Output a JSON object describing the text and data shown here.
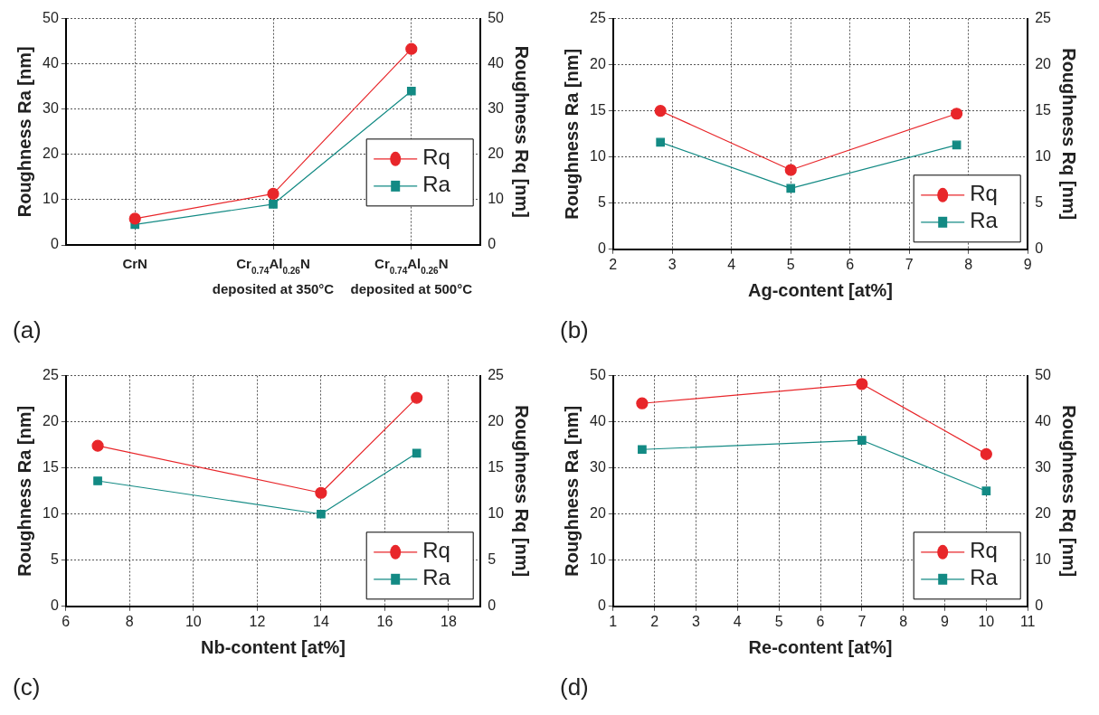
{
  "chart_data": [
    {
      "type": "line",
      "categories": [
        "CrN",
        "Cr$_{0.74}$Al$_{0.26}$N\ndeposited at 350°C",
        "Cr$_{0.74}$Al$_{0.26}$N\ndeposited at 500°C"
      ],
      "ylabel": "Roughness Ra [nm]",
      "y2label": "Roughness Rq [nm]",
      "ylim": [
        0,
        50
      ],
      "yticks": [
        0,
        10,
        20,
        30,
        40,
        50
      ],
      "y2lim": [
        0,
        50
      ],
      "y2ticks": [
        0,
        10,
        20,
        30,
        40,
        50
      ],
      "grid": true,
      "legend": "right",
      "annotations": [
        "(a)"
      ],
      "series": [
        {
          "name": "Rq",
          "color": "#e8262a",
          "marker": "circle",
          "values": [
            5.8,
            11.3,
            43.3
          ]
        },
        {
          "name": "Ra",
          "color": "#138a84",
          "marker": "square",
          "values": [
            4.5,
            9,
            34
          ]
        }
      ]
    },
    {
      "type": "line",
      "x": [
        2.8,
        5,
        7.8
      ],
      "xlabel": "Ag-content [at%]",
      "ylabel": "Roughness Ra [nm]",
      "y2label": "Roughness Rq [nm]",
      "xlim": [
        2,
        9
      ],
      "xticks": [
        2,
        3,
        4,
        5,
        6,
        7,
        8,
        9
      ],
      "ylim": [
        0,
        25
      ],
      "yticks": [
        0,
        5,
        10,
        15,
        20,
        25
      ],
      "y2lim": [
        0,
        25
      ],
      "y2ticks": [
        0,
        5,
        10,
        15,
        20,
        25
      ],
      "grid": true,
      "legend": "bottom right",
      "annotations": [
        "(b)"
      ],
      "series": [
        {
          "name": "Rq",
          "color": "#e8262a",
          "marker": "circle",
          "values": [
            15,
            8.6,
            14.7
          ]
        },
        {
          "name": "Ra",
          "color": "#138a84",
          "marker": "square",
          "values": [
            11.6,
            6.6,
            11.3
          ]
        }
      ]
    },
    {
      "type": "line",
      "x": [
        7,
        14,
        17
      ],
      "xlabel": "Nb-content [at%]",
      "ylabel": "Roughness Ra [nm]",
      "y2label": "Roughness Rq [nm]",
      "xlim": [
        6,
        19
      ],
      "xticks": [
        6,
        8,
        10,
        12,
        14,
        16,
        18
      ],
      "ylim": [
        0,
        25
      ],
      "yticks": [
        0,
        5,
        10,
        15,
        20,
        25
      ],
      "y2lim": [
        0,
        25
      ],
      "y2ticks": [
        0,
        5,
        10,
        15,
        20,
        25
      ],
      "grid": true,
      "legend": "bottom right",
      "annotations": [
        "(c)"
      ],
      "series": [
        {
          "name": "Rq",
          "color": "#e8262a",
          "marker": "circle",
          "values": [
            17.4,
            12.3,
            22.6
          ]
        },
        {
          "name": "Ra",
          "color": "#138a84",
          "marker": "square",
          "values": [
            13.6,
            10,
            16.6
          ]
        }
      ]
    },
    {
      "type": "line",
      "x": [
        1.7,
        7,
        10
      ],
      "xlabel": "Re-content [at%]",
      "ylabel": "Roughness Ra [nm]",
      "y2label": "Roughness Rq [nm]",
      "xlim": [
        1,
        11
      ],
      "xticks": [
        1,
        2,
        3,
        4,
        5,
        6,
        7,
        8,
        9,
        10,
        11
      ],
      "ylim": [
        0,
        50
      ],
      "yticks": [
        0,
        10,
        20,
        30,
        40,
        50
      ],
      "y2lim": [
        0,
        50
      ],
      "y2ticks": [
        0,
        10,
        20,
        30,
        40,
        50
      ],
      "grid": true,
      "legend": "bottom right",
      "annotations": [
        "(d)"
      ],
      "series": [
        {
          "name": "Rq",
          "color": "#e8262a",
          "marker": "circle",
          "values": [
            44,
            48.2,
            33
          ]
        },
        {
          "name": "Ra",
          "color": "#138a84",
          "marker": "square",
          "values": [
            34,
            36,
            25
          ]
        }
      ]
    }
  ]
}
